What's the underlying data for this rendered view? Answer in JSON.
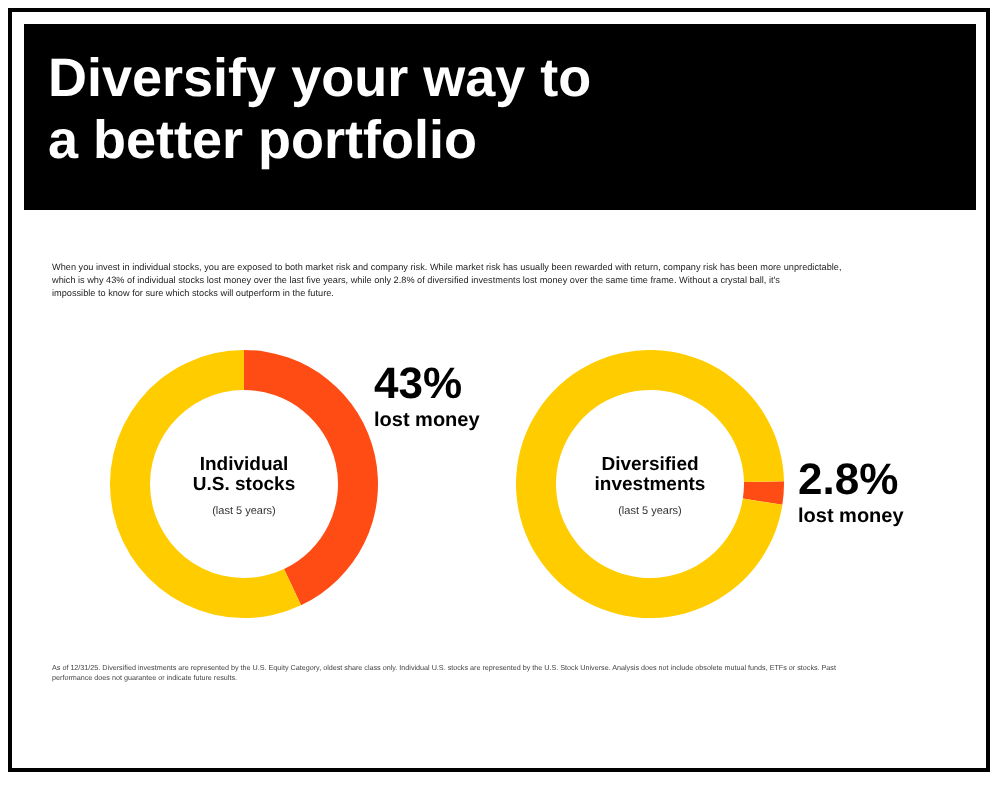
{
  "chart_data": [
    {
      "type": "other",
      "title": "Diversify your way to a better portfolio",
      "subtitle": "When you invest in individual stocks, you are exposed to both market risk and company risk. While market risk has usually been rewarded with return, company risk has been more unpredictable, which is why 43% of individual stocks lost money over the last five years, while only 2.8% of diversified investments lost money over the same time frame. Without a crystal ball, it's impossible to know for sure which stocks will outperform in the future.",
      "annotations": [
        "As of 12/31/25. Diversified investments are represented by the U.S. Equity Category, oldest share class only. Individual U.S. stocks are represented by the U.S. Stock Universe. Analysis does not include obsolete mutual funds, ETFs or stocks. Past performance does not guarantee or indicate future results."
      ]
    },
    {
      "type": "donut",
      "title": "Individual U.S. stocks",
      "subtitle": "(last 5 years)",
      "categories": [
        "lost money",
        null
      ],
      "values": [
        43,
        57
      ],
      "colors": [
        "#ff4b14",
        "#ffcc00"
      ],
      "value_labels": [
        "43%",
        null
      ]
    },
    {
      "type": "donut",
      "title": "Diversified investments",
      "subtitle": "(last 5 years)",
      "categories": [
        "lost money",
        null
      ],
      "values": [
        2.8,
        97.2
      ],
      "colors": [
        "#ff4b14",
        "#ffcc00"
      ],
      "value_labels": [
        "2.8%",
        null
      ]
    }
  ]
}
